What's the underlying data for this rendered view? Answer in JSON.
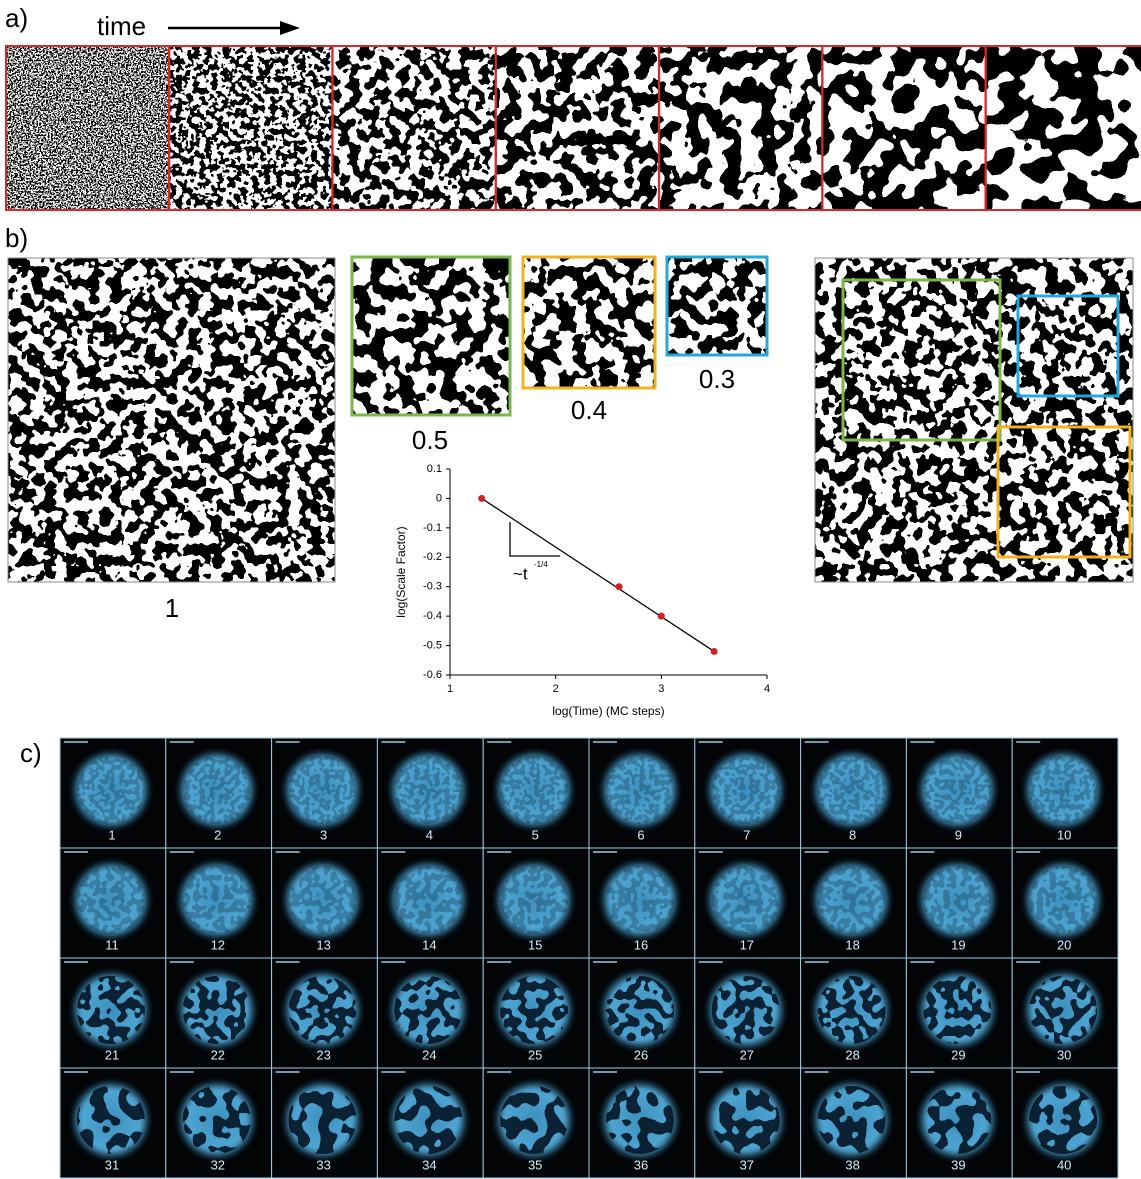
{
  "panel_a": {
    "label": "a)",
    "arrow_label": "time"
  },
  "panel_b": {
    "label": "b)",
    "scale_labels": [
      1,
      0.5,
      0.4,
      0.3
    ]
  },
  "chart_data": {
    "type": "scatter",
    "x": [
      1.3,
      2.6,
      3,
      3.5
    ],
    "values": [
      0,
      -0.3,
      -0.4,
      -0.52
    ],
    "color": "#d42020",
    "xlabel": "log(Time) (MC steps)",
    "ylabel": "log(Scale Factor)",
    "xlim": [
      1,
      4
    ],
    "xticks": [
      1,
      2,
      3,
      4
    ],
    "ylim": [
      -0.6,
      0.1
    ],
    "yticks": [
      0.1,
      0,
      -0.1,
      -0.2,
      -0.3,
      -0.4,
      -0.5,
      -0.6
    ],
    "annotation": "~t",
    "annotation_exponent": "-1/4"
  },
  "panel_c": {
    "label": "c)",
    "frames": [
      1,
      2,
      3,
      4,
      5,
      6,
      7,
      8,
      9,
      10,
      11,
      12,
      13,
      14,
      15,
      16,
      17,
      18,
      19,
      20,
      21,
      22,
      23,
      24,
      25,
      26,
      27,
      28,
      29,
      30,
      31,
      32,
      33,
      34,
      35,
      36,
      37,
      38,
      39,
      40
    ]
  }
}
